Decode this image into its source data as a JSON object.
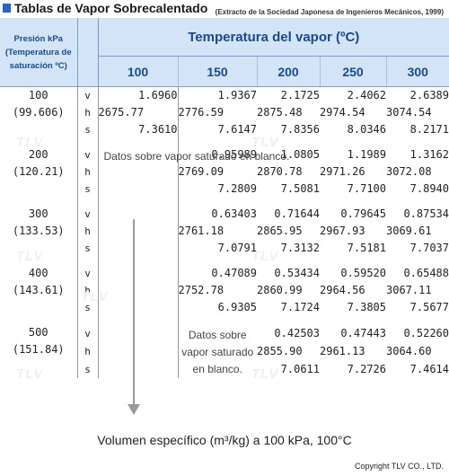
{
  "title": "Tablas de Vapor Sobrecalentado",
  "source_note": "(Extracto de la Sociedad Japonesa de Ingenieros Mecánicos, 1999)",
  "header": {
    "pressure_label": "Presión kPa (Temperatura de saturación ºC)",
    "temperature_label": "Temperatura del vapor (ºC)",
    "columns": [
      "100",
      "150",
      "200",
      "250",
      "300"
    ]
  },
  "watermark": "TLV",
  "blank_note": "Datos sobre vapor saturado en blanco.",
  "groups": [
    {
      "pressure": "100",
      "saturation": "(99.606)",
      "rows": [
        {
          "prop": "v",
          "values": [
            "1.6960",
            "1.9367",
            "2.1725",
            "2.4062",
            "2.6389"
          ]
        },
        {
          "prop": "h",
          "values": [
            "2675.77",
            "2776.59",
            "2875.48",
            "2974.54",
            "3074.54"
          ]
        },
        {
          "prop": "s",
          "values": [
            "7.3610",
            "7.6147",
            "7.8356",
            "8.0346",
            "8.2171"
          ]
        }
      ]
    },
    {
      "pressure": "200",
      "saturation": "(120.21)",
      "rows": [
        {
          "prop": "v",
          "values": [
            "0.95989",
            "1.0805",
            "1.1989",
            "1.3162"
          ]
        },
        {
          "prop": "h",
          "values": [
            "2769.09",
            "2870.78",
            "2971.26",
            "3072.08"
          ]
        },
        {
          "prop": "s",
          "values": [
            "7.2809",
            "7.5081",
            "7.7100",
            "7.8940"
          ]
        }
      ]
    },
    {
      "pressure": "300",
      "saturation": "(133.53)",
      "rows": [
        {
          "prop": "v",
          "values": [
            "0.63403",
            "0.71644",
            "0.79645",
            "0.87534"
          ]
        },
        {
          "prop": "h",
          "values": [
            "2761.18",
            "2865.95",
            "2967.93",
            "3069.61"
          ]
        },
        {
          "prop": "s",
          "values": [
            "7.0791",
            "7.3132",
            "7.5181",
            "7.7037"
          ]
        }
      ]
    },
    {
      "pressure": "400",
      "saturation": "(143.61)",
      "rows": [
        {
          "prop": "v",
          "values": [
            "0.47089",
            "0.53434",
            "0.59520",
            "0.65488"
          ]
        },
        {
          "prop": "h",
          "values": [
            "2752.78",
            "2860.99",
            "2964.56",
            "3067.11"
          ]
        },
        {
          "prop": "s",
          "values": [
            "6.9305",
            "7.1724",
            "7.3805",
            "7.5677"
          ]
        }
      ]
    },
    {
      "pressure": "500",
      "saturation": "(151.84)",
      "rows": [
        {
          "prop": "v",
          "values": [
            "0.42503",
            "0.47443",
            "0.52260"
          ]
        },
        {
          "prop": "h",
          "values": [
            "2855.90",
            "2961.13",
            "3064.60"
          ]
        },
        {
          "prop": "s",
          "values": [
            "7.0611",
            "7.2726",
            "7.4614"
          ]
        }
      ]
    }
  ],
  "caption": "Volumen específico (m³/kg) a 100 kPa, 100°C",
  "copyright": "Copyright TLV CO., LTD."
}
